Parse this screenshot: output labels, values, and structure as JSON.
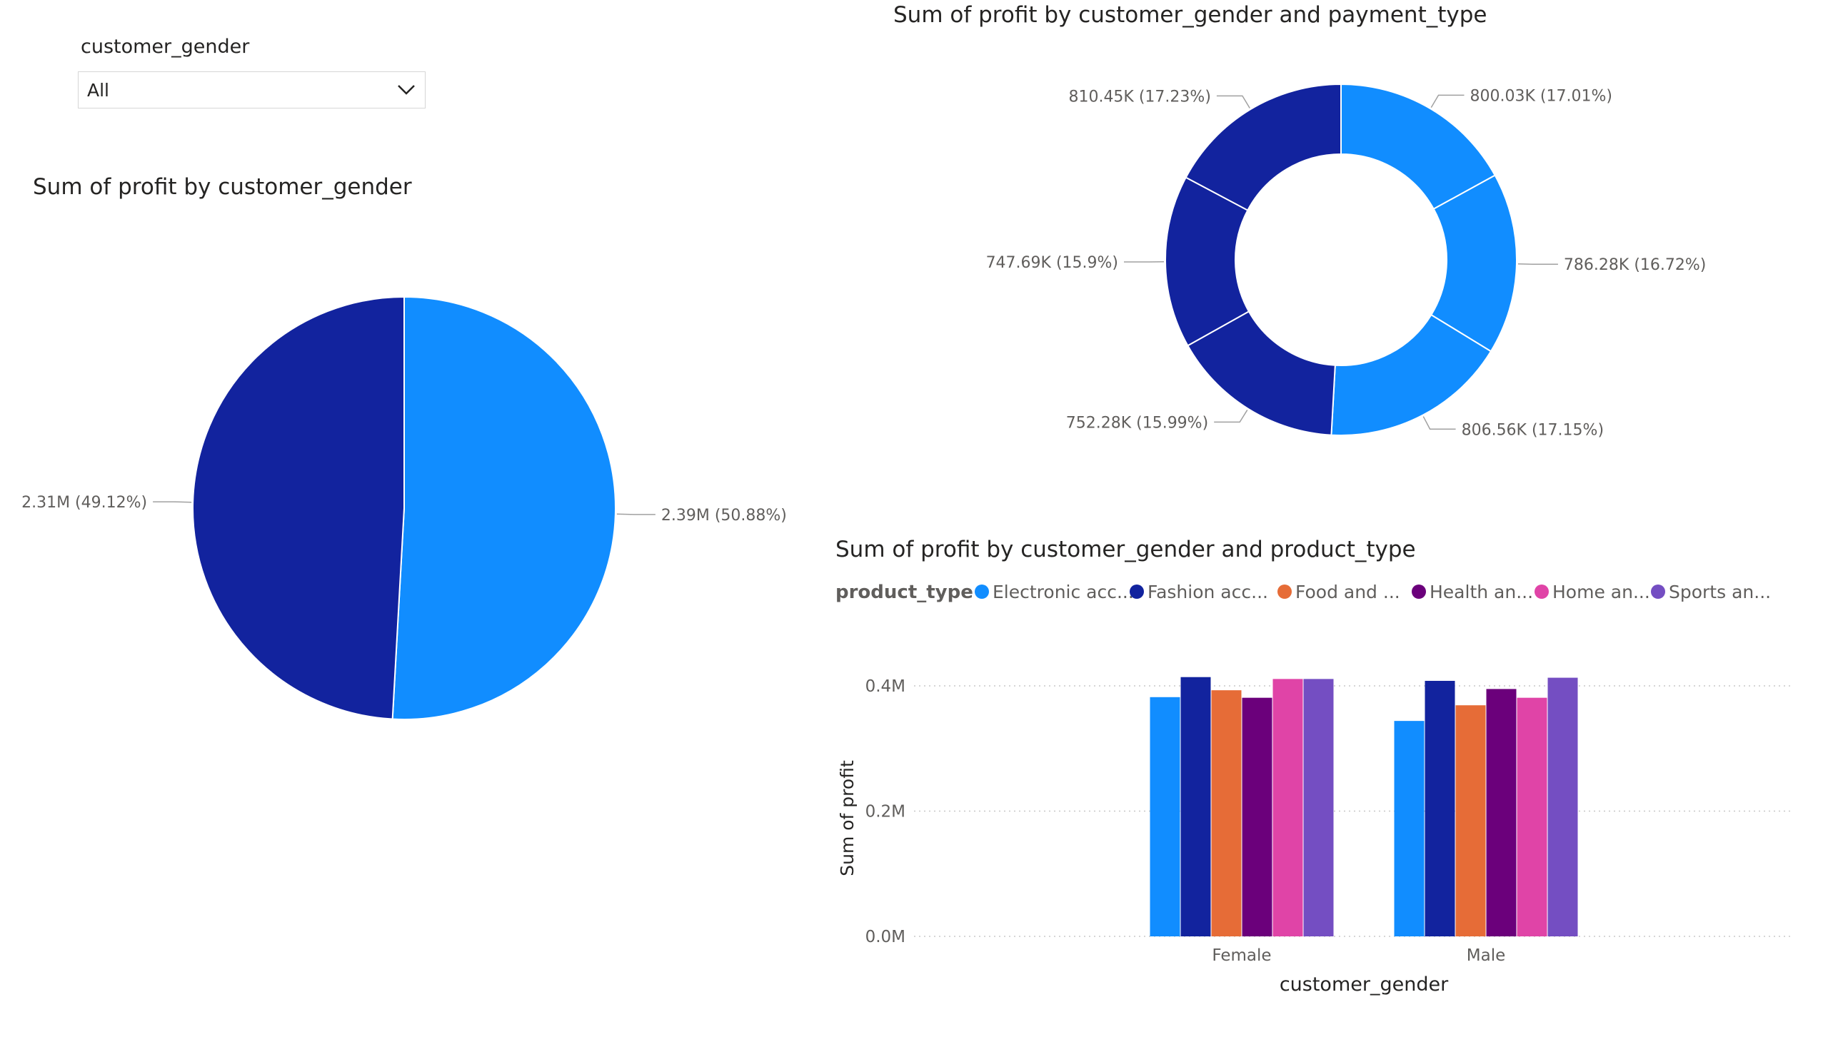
{
  "slicer": {
    "title": "customer_gender",
    "selected": "All",
    "chevron_icon": "chevron-down-icon"
  },
  "colors": {
    "light_blue": "#118DFF",
    "dark_blue": "#12239E",
    "orange": "#E66C37",
    "purple": "#6B007B",
    "pink": "#E044A7",
    "violet": "#744EC2",
    "label_gray": "#605E5C",
    "leader_gray": "#A0A0A0"
  },
  "chart_data": [
    {
      "id": "pie",
      "type": "pie",
      "title": "Sum of profit by customer_gender",
      "slices": [
        {
          "value": 2.39,
          "unit": "M",
          "percent": 50.88,
          "label": "2.39M (50.88%)",
          "color": "#118DFF"
        },
        {
          "value": 2.31,
          "unit": "M",
          "percent": 49.12,
          "label": "2.31M (49.12%)",
          "color": "#12239E"
        }
      ]
    },
    {
      "id": "donut",
      "type": "pie",
      "subtype": "donut",
      "title": "Sum of profit by customer_gender and payment_type",
      "slices": [
        {
          "value": 800.03,
          "unit": "K",
          "percent": 17.01,
          "label": "800.03K (17.01%)",
          "color": "#118DFF"
        },
        {
          "value": 786.28,
          "unit": "K",
          "percent": 16.72,
          "label": "786.28K (16.72%)",
          "color": "#118DFF"
        },
        {
          "value": 806.56,
          "unit": "K",
          "percent": 17.15,
          "label": "806.56K (17.15%)",
          "color": "#118DFF"
        },
        {
          "value": 752.28,
          "unit": "K",
          "percent": 15.99,
          "label": "752.28K (15.99%)",
          "color": "#12239E"
        },
        {
          "value": 747.69,
          "unit": "K",
          "percent": 15.9,
          "label": "747.69K (15.9%)",
          "color": "#12239E"
        },
        {
          "value": 810.45,
          "unit": "K",
          "percent": 17.23,
          "label": "810.45K (17.23%)",
          "color": "#12239E"
        }
      ]
    },
    {
      "id": "bars",
      "type": "bar",
      "title": "Sum of profit by customer_gender and product_type",
      "xlabel": "customer_gender",
      "ylabel": "Sum of profit",
      "legend_title": "product_type",
      "legend_position": "top-left",
      "categories": [
        "Female",
        "Male"
      ],
      "ylim": [
        0,
        0.4
      ],
      "yticks": [
        {
          "value": 0.0,
          "label": "0.0M"
        },
        {
          "value": 0.2,
          "label": "0.2M"
        },
        {
          "value": 0.4,
          "label": "0.4M"
        }
      ],
      "grid": true,
      "series": [
        {
          "name": "Electronic acc...",
          "color": "#118DFF",
          "values": [
            0.382,
            0.344
          ]
        },
        {
          "name": "Fashion acc...",
          "color": "#12239E",
          "values": [
            0.414,
            0.408
          ]
        },
        {
          "name": "Food and ...",
          "color": "#E66C37",
          "values": [
            0.393,
            0.369
          ]
        },
        {
          "name": "Health an...",
          "color": "#6B007B",
          "values": [
            0.381,
            0.395
          ]
        },
        {
          "name": "Home an...",
          "color": "#E044A7",
          "values": [
            0.411,
            0.381
          ]
        },
        {
          "name": "Sports an...",
          "color": "#744EC2",
          "values": [
            0.411,
            0.413
          ]
        }
      ]
    }
  ]
}
